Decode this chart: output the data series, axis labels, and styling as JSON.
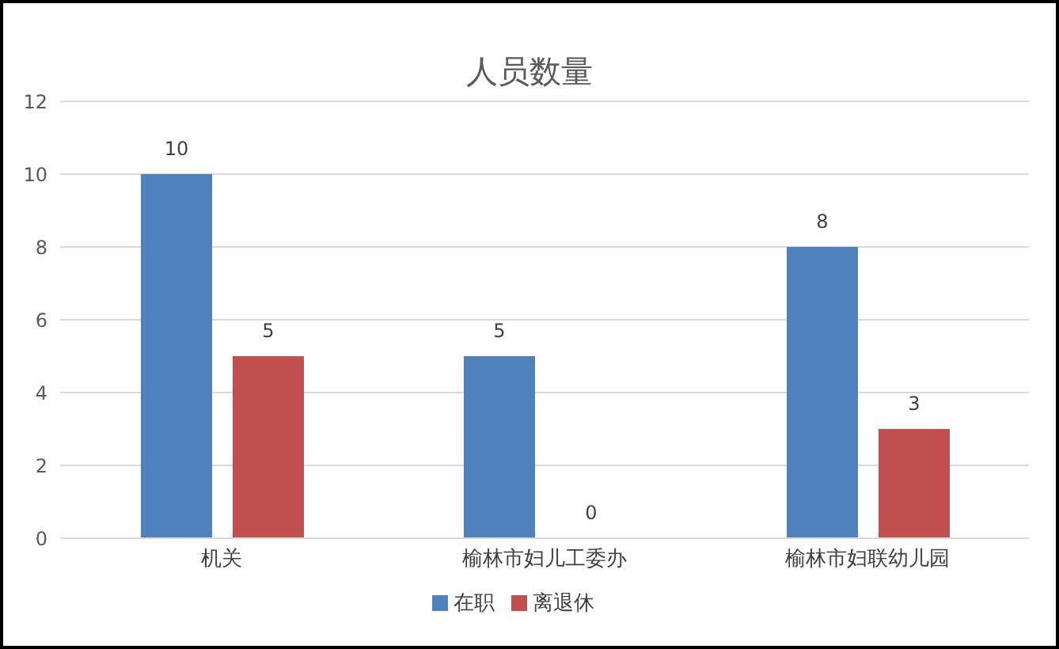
{
  "chart_data": {
    "type": "bar",
    "title": "人员数量",
    "categories": [
      "机关",
      "榆林市妇儿工委办",
      "榆林市妇联幼儿园"
    ],
    "series": [
      {
        "name": "在职",
        "color": "#4f81bd",
        "values": [
          10,
          5,
          8
        ]
      },
      {
        "name": "离退休",
        "color": "#c0504d",
        "values": [
          5,
          0,
          3
        ]
      }
    ],
    "ylim": [
      0,
      12
    ],
    "yticks": [
      0,
      2,
      4,
      6,
      8,
      10,
      12
    ],
    "grid": "y",
    "legend": "bottom",
    "data_labels": true
  }
}
